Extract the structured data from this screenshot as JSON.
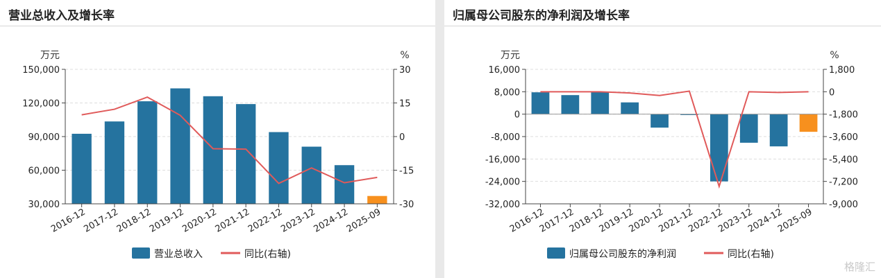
{
  "watermark": "格隆汇",
  "colors": {
    "bar": "#25739f",
    "bar_highlight": "#f7901e",
    "line": "#e05a5a",
    "grid": "#dddddd",
    "axis": "#444444"
  },
  "chart_data": [
    {
      "type": "bar",
      "title": "营业总收入及增长率",
      "left_unit": "万元",
      "right_unit": "%",
      "categories": [
        "2016-12",
        "2017-12",
        "2018-12",
        "2019-12",
        "2020-12",
        "2021-12",
        "2022-12",
        "2023-12",
        "2024-12",
        "2025-09"
      ],
      "series": [
        {
          "name": "营业总收入",
          "type": "bar",
          "values": [
            92500,
            103500,
            121500,
            133000,
            126000,
            119000,
            94000,
            81000,
            64500,
            37000
          ],
          "highlight_last": true
        },
        {
          "name": "同比(右轴)",
          "type": "line",
          "axis": "right",
          "values": [
            9.7,
            12.2,
            17.6,
            9.5,
            -5.4,
            -5.6,
            -20.9,
            -14,
            -20.6,
            -18.2
          ]
        }
      ],
      "left_axis": {
        "min": 30000,
        "max": 150000,
        "ticks": [
          30000,
          60000,
          90000,
          120000,
          150000
        ]
      },
      "right_axis": {
        "min": -30,
        "max": 30,
        "ticks": [
          -30,
          -15,
          0,
          15,
          30
        ]
      },
      "grid": true,
      "legend_position": "bottom"
    },
    {
      "type": "bar",
      "title": "归属母公司股东的净利润及增长率",
      "left_unit": "万元",
      "right_unit": "%",
      "categories": [
        "2016-12",
        "2017-12",
        "2018-12",
        "2019-12",
        "2020-12",
        "2021-12",
        "2022-12",
        "2023-12",
        "2024-12",
        "2025-09"
      ],
      "series": [
        {
          "name": "归属母公司股东的净利润",
          "type": "bar",
          "values": [
            7800,
            6800,
            8000,
            4200,
            -4800,
            -300,
            -24000,
            -10200,
            -11500,
            -6300
          ],
          "highlight_last": true
        },
        {
          "name": "同比(右轴)",
          "type": "line",
          "axis": "right",
          "values": [
            0,
            0,
            0,
            -100,
            -300,
            50,
            -7600,
            0,
            -60,
            0
          ]
        }
      ],
      "left_axis": {
        "min": -32000,
        "max": 16000,
        "ticks": [
          -32000,
          -24000,
          -16000,
          -8000,
          0,
          8000,
          16000
        ]
      },
      "right_axis": {
        "min": -9000,
        "max": 1800,
        "ticks": [
          -9000,
          -7200,
          -5400,
          -3600,
          -1800,
          0,
          1800
        ]
      },
      "grid": true,
      "legend_position": "bottom"
    }
  ]
}
